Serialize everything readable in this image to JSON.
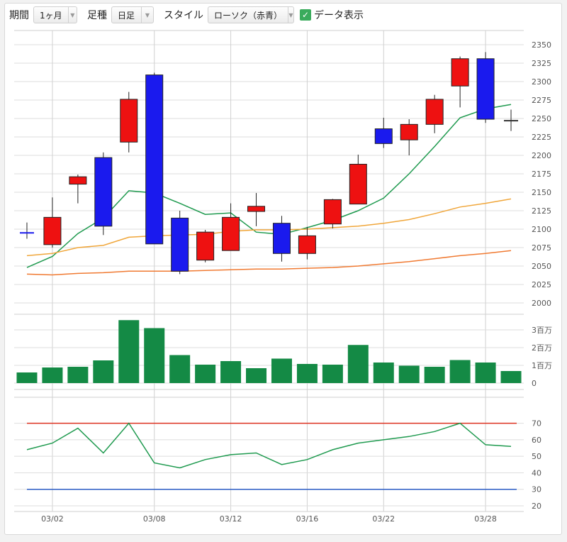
{
  "toolbar": {
    "period_label": "期間",
    "period_value": "1ヶ月",
    "foot_label": "足種",
    "foot_value": "日足",
    "style_label": "スタイル",
    "style_value": "ローソク（赤青）",
    "data_display_label": "データ表示",
    "data_display_checked": true
  },
  "colors": {
    "up_candle": "#ee1111",
    "down_candle": "#1a1aee",
    "ma_short": "#1f9a4f",
    "ma_mid": "#f0a63a",
    "ma_long": "#f07a32",
    "volume": "#148a45",
    "rsi_line": "#1f9a4f",
    "rsi_upper": "#dd3322",
    "rsi_lower": "#2a5bc4",
    "grid": "#dedede"
  },
  "chart_data": [
    {
      "type": "candlestick",
      "panel": "price",
      "ylim": [
        2000,
        2350
      ],
      "yticks": [
        2000,
        2025,
        2050,
        2075,
        2100,
        2125,
        2150,
        2175,
        2200,
        2225,
        2250,
        2275,
        2300,
        2325,
        2350
      ],
      "x_tick_labels": [
        {
          "index": 1,
          "label": "03/02"
        },
        {
          "index": 5,
          "label": "03/08"
        },
        {
          "index": 8,
          "label": "03/12"
        },
        {
          "index": 11,
          "label": "03/16"
        },
        {
          "index": 14,
          "label": "03/22"
        },
        {
          "index": 18,
          "label": "03/28"
        }
      ],
      "candles": [
        {
          "open": 2095,
          "high": 2109,
          "low": 2087,
          "close": 2095
        },
        {
          "open": 2079,
          "high": 2143,
          "low": 2075,
          "close": 2116
        },
        {
          "open": 2161,
          "high": 2174,
          "low": 2135,
          "close": 2171
        },
        {
          "open": 2197,
          "high": 2204,
          "low": 2092,
          "close": 2104
        },
        {
          "open": 2218,
          "high": 2286,
          "low": 2204,
          "close": 2276
        },
        {
          "open": 2309,
          "high": 2312,
          "low": 2080,
          "close": 2080
        },
        {
          "open": 2115,
          "high": 2125,
          "low": 2039,
          "close": 2043
        },
        {
          "open": 2058,
          "high": 2099,
          "low": 2055,
          "close": 2096
        },
        {
          "open": 2071,
          "high": 2135,
          "low": 2071,
          "close": 2116
        },
        {
          "open": 2124,
          "high": 2149,
          "low": 2104,
          "close": 2131
        },
        {
          "open": 2108,
          "high": 2118,
          "low": 2056,
          "close": 2067
        },
        {
          "open": 2067,
          "high": 2103,
          "low": 2059,
          "close": 2091
        },
        {
          "open": 2107,
          "high": 2141,
          "low": 2101,
          "close": 2140
        },
        {
          "open": 2134,
          "high": 2201,
          "low": 2134,
          "close": 2188
        },
        {
          "open": 2236,
          "high": 2251,
          "low": 2210,
          "close": 2216
        },
        {
          "open": 2221,
          "high": 2249,
          "low": 2200,
          "close": 2242
        },
        {
          "open": 2242,
          "high": 2282,
          "low": 2230,
          "close": 2276
        },
        {
          "open": 2294,
          "high": 2334,
          "low": 2265,
          "close": 2331
        },
        {
          "open": 2331,
          "high": 2340,
          "low": 2244,
          "close": 2249
        },
        {
          "open": 2247,
          "high": 2262,
          "low": 2233,
          "close": 2247
        }
      ],
      "series": [
        {
          "values": [
            2048,
            2063,
            2094,
            2115,
            2152,
            2149,
            2135,
            2120,
            2122,
            2096,
            2093,
            2102,
            2112,
            2125,
            2142,
            2175,
            2212,
            2251,
            2263,
            2269
          ]
        },
        {
          "values": [
            2064,
            2067,
            2075,
            2078,
            2089,
            2091,
            2092,
            2093,
            2097,
            2099,
            2099,
            2100,
            2102,
            2104,
            2108,
            2113,
            2121,
            2130,
            2135,
            2141
          ]
        },
        {
          "values": [
            2039,
            2038,
            2040,
            2041,
            2043,
            2043,
            2043,
            2044,
            2045,
            2046,
            2046,
            2047,
            2048,
            2050,
            2053,
            2056,
            2060,
            2064,
            2067,
            2071
          ]
        }
      ]
    },
    {
      "type": "bar",
      "panel": "volume",
      "ylim": [
        0,
        3.5
      ],
      "tick_labels": [
        "0",
        "1百万",
        "2百万",
        "3百万"
      ],
      "values": [
        0.6,
        0.88,
        0.92,
        1.28,
        3.55,
        3.1,
        1.58,
        1.04,
        1.24,
        0.84,
        1.38,
        1.08,
        1.04,
        2.15,
        1.16,
        0.98,
        0.92,
        1.3,
        1.16,
        0.68
      ]
    },
    {
      "type": "line",
      "panel": "oscillator",
      "ylim": [
        20,
        75
      ],
      "yticks": [
        20,
        30,
        40,
        50,
        60,
        70
      ],
      "upper_level": 70,
      "lower_level": 30,
      "values": [
        54,
        58,
        67,
        52,
        70,
        46,
        43,
        48,
        51,
        52,
        45,
        48,
        54,
        58,
        60,
        62,
        65,
        70,
        57,
        56
      ]
    }
  ]
}
